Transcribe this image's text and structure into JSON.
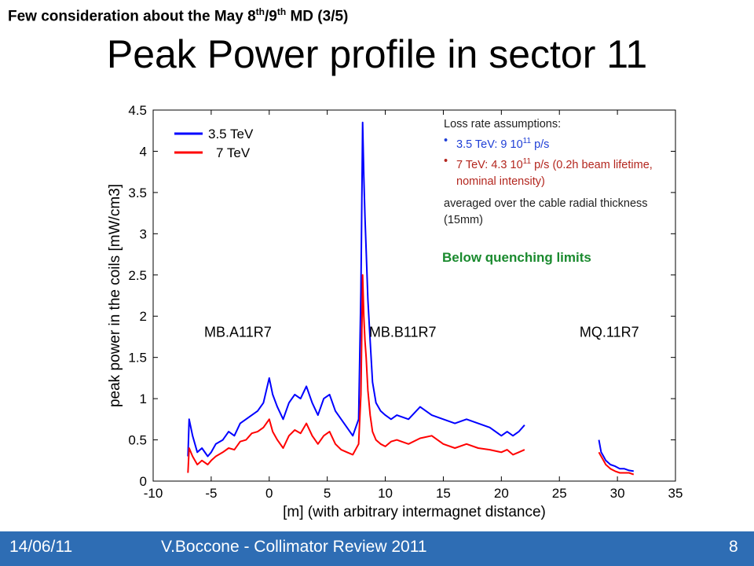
{
  "slide": {
    "header_main": "Few consideration about the May 8",
    "header_sup1": "th",
    "header_mid": "/9",
    "header_sup2": "th",
    "header_end": " MD (3/5)",
    "title": "Peak Power profile in sector 11"
  },
  "notes": {
    "heading": "Loss rate assumptions:",
    "bullet1_pre": "3.5 TeV: 9 10",
    "bullet1_sup": "11",
    "bullet1_post": " p/s",
    "bullet2_pre": "7 TeV:    4.3 10",
    "bullet2_sup": "11",
    "bullet2_post": " p/s (0.2h beam lifetime, nominal intensity)",
    "averaged": "averaged over the cable radial thickness (15mm)",
    "quench": "Below quenching limits"
  },
  "footer": {
    "date": "14/06/11",
    "center": "V.Boccone - Collimator Review 2011",
    "page": "8"
  },
  "chart_data": {
    "type": "line",
    "xlabel": "[m] (with arbitrary intermagnet distance)",
    "ylabel": "peak power in the coils [mW/cm3]",
    "xlim": [
      -10,
      35
    ],
    "ylim": [
      0,
      4.5
    ],
    "xticks": [
      -10,
      -5,
      0,
      5,
      10,
      15,
      20,
      25,
      30,
      35
    ],
    "yticks": [
      0,
      0.5,
      1,
      1.5,
      2,
      2.5,
      3,
      3.5,
      4,
      4.5
    ],
    "legend_position": "top-left",
    "annotations": [
      {
        "text": "MB.A11R7",
        "x": -2.7,
        "y": 1.75
      },
      {
        "text": "MB.B11R7",
        "x": 11.5,
        "y": 1.75
      },
      {
        "text": "MQ.11R7",
        "x": 29.3,
        "y": 1.75
      }
    ],
    "series": [
      {
        "name": "3.5 TeV",
        "color": "#0000ff",
        "x": [
          -7,
          -6.9,
          -6.6,
          -6.2,
          -5.8,
          -5.3,
          -5,
          -4.6,
          -4,
          -3.5,
          -3,
          -2.5,
          -2,
          -1.5,
          -1,
          -0.5,
          0,
          0.3,
          0.7,
          1.2,
          1.7,
          2.2,
          2.7,
          3.2,
          3.7,
          4.2,
          4.7,
          5.2,
          5.7,
          6.2,
          6.7,
          7.2,
          7.7,
          7.9,
          8.05,
          8.15,
          8.25,
          8.35,
          8.5,
          8.7,
          8.9,
          9.2,
          9.6,
          10,
          10.5,
          11,
          12,
          13,
          14,
          15,
          16,
          17,
          18,
          19,
          20,
          20.5,
          21,
          21.5,
          22,
          28.4,
          28.6,
          28.8,
          29,
          29.4,
          29.8,
          30.2,
          30.6,
          31,
          31.4
        ],
        "values": [
          0.3,
          0.75,
          0.55,
          0.35,
          0.4,
          0.3,
          0.35,
          0.45,
          0.5,
          0.6,
          0.55,
          0.7,
          0.75,
          0.8,
          0.85,
          0.95,
          1.25,
          1.05,
          0.9,
          0.75,
          0.95,
          1.05,
          1.0,
          1.15,
          0.95,
          0.8,
          1.0,
          1.05,
          0.85,
          0.75,
          0.65,
          0.55,
          0.75,
          2.3,
          4.35,
          3.7,
          3.2,
          2.8,
          2.2,
          1.7,
          1.2,
          0.95,
          0.85,
          0.8,
          0.75,
          0.8,
          0.75,
          0.9,
          0.8,
          0.75,
          0.7,
          0.75,
          0.7,
          0.65,
          0.55,
          0.6,
          0.55,
          0.6,
          0.68,
          0.5,
          0.35,
          0.3,
          0.25,
          0.2,
          0.18,
          0.15,
          0.15,
          0.13,
          0.12
        ]
      },
      {
        "name": "7 TeV",
        "color": "#ff0000",
        "x": [
          -7,
          -6.9,
          -6.6,
          -6.2,
          -5.8,
          -5.3,
          -5,
          -4.6,
          -4,
          -3.5,
          -3,
          -2.5,
          -2,
          -1.5,
          -1,
          -0.5,
          0,
          0.3,
          0.7,
          1.2,
          1.7,
          2.2,
          2.7,
          3.2,
          3.7,
          4.2,
          4.7,
          5.2,
          5.7,
          6.2,
          6.7,
          7.2,
          7.7,
          7.9,
          8.05,
          8.15,
          8.25,
          8.35,
          8.5,
          8.7,
          8.9,
          9.2,
          9.6,
          10,
          10.5,
          11,
          12,
          13,
          14,
          15,
          16,
          17,
          18,
          19,
          20,
          20.5,
          21,
          21.5,
          22,
          28.4,
          28.6,
          28.8,
          29,
          29.4,
          29.8,
          30.2,
          30.6,
          31,
          31.4
        ],
        "values": [
          0.1,
          0.4,
          0.3,
          0.2,
          0.25,
          0.2,
          0.25,
          0.3,
          0.35,
          0.4,
          0.38,
          0.48,
          0.5,
          0.58,
          0.6,
          0.65,
          0.75,
          0.6,
          0.5,
          0.4,
          0.55,
          0.62,
          0.58,
          0.7,
          0.55,
          0.45,
          0.55,
          0.6,
          0.45,
          0.38,
          0.35,
          0.32,
          0.45,
          1.05,
          2.5,
          2.0,
          1.7,
          1.5,
          1.1,
          0.8,
          0.6,
          0.5,
          0.45,
          0.42,
          0.48,
          0.5,
          0.45,
          0.52,
          0.55,
          0.45,
          0.4,
          0.45,
          0.4,
          0.38,
          0.35,
          0.38,
          0.32,
          0.35,
          0.38,
          0.35,
          0.3,
          0.25,
          0.2,
          0.15,
          0.12,
          0.1,
          0.1,
          0.1,
          0.08
        ]
      }
    ]
  }
}
